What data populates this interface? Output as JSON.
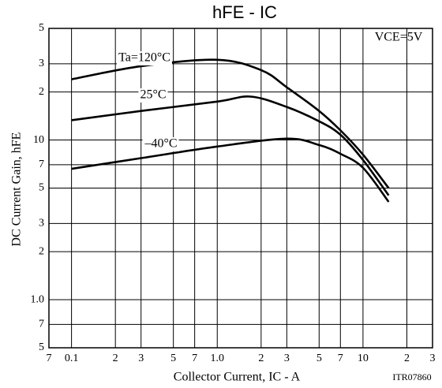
{
  "chart_data": {
    "type": "line",
    "title": "hFE - IC",
    "x_label": "Collector Current, IC - A",
    "y_label": "DC Current Gain, hFE",
    "condition": "VCE=5V",
    "code": "ITR07860",
    "log_x": true,
    "log_y": true,
    "grid": true,
    "xlim": [
      0.07,
      30
    ],
    "ylim": [
      0.5,
      50
    ],
    "xticks": [
      {
        "value": 0.07,
        "label": "7"
      },
      0.1,
      {
        "value": 0.2,
        "label": "2"
      },
      {
        "value": 0.3,
        "label": "3"
      },
      {
        "value": 0.5,
        "label": "5"
      },
      {
        "value": 0.7,
        "label": "7"
      },
      {
        "value": 1,
        "label": "1.0"
      },
      2,
      3,
      5,
      7,
      10,
      {
        "value": 20,
        "label": "2"
      },
      {
        "value": 30,
        "label": "3"
      }
    ],
    "yticks": [
      {
        "value": 0.5,
        "label": "5"
      },
      {
        "value": 0.7,
        "label": "7"
      },
      {
        "value": 1,
        "label": "1.0"
      },
      2,
      3,
      5,
      7,
      10,
      {
        "value": 20,
        "label": "2"
      },
      {
        "value": 30,
        "label": "3"
      },
      {
        "value": 50,
        "label": "5"
      }
    ],
    "series": [
      {
        "name": "Ta=120°C",
        "color": "#000000",
        "x": [
          0.1,
          0.3,
          1,
          2,
          3,
          5,
          7,
          10,
          15
        ],
        "values": [
          24,
          29,
          31.8,
          27.4,
          21.4,
          15.2,
          11.5,
          8.1,
          5.0
        ]
      },
      {
        "name": "25°C",
        "color": "#000000",
        "x": [
          0.1,
          0.3,
          1,
          1.7,
          3,
          5,
          7,
          10,
          15
        ],
        "values": [
          13.3,
          15.2,
          17.4,
          18.7,
          16.1,
          13.1,
          10.8,
          7.5,
          4.5
        ]
      },
      {
        "name": "–40°C",
        "color": "#000000",
        "x": [
          0.1,
          0.3,
          1,
          3,
          5,
          7,
          10,
          15
        ],
        "values": [
          6.6,
          7.7,
          9.1,
          10.2,
          9.3,
          8.2,
          6.7,
          4.1
        ]
      }
    ]
  }
}
